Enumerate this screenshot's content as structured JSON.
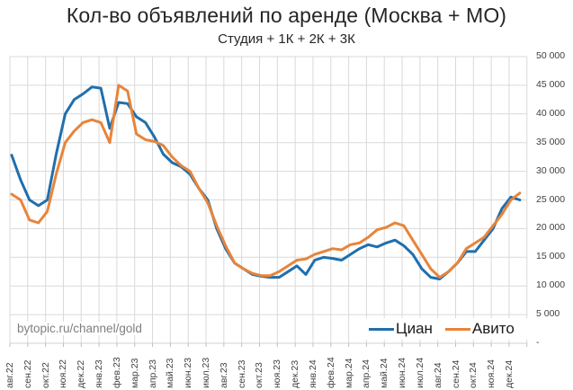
{
  "header": {
    "title": "Кол-во объявлений по аренде (Москва + МО)",
    "subtitle": "Студия + 1К + 2К + 3К"
  },
  "watermark": "bytopic.ru/channel/gold",
  "legend": [
    {
      "name": "Циан",
      "color": "#1f6fad"
    },
    {
      "name": "Авито",
      "color": "#e8843a"
    }
  ],
  "y_ticks": [
    "50 000",
    "45 000",
    "40 000",
    "35 000",
    "30 000",
    "25 000",
    "20 000",
    "15 000",
    "10 000",
    "5 000",
    "-"
  ],
  "x_ticks": [
    "авг.22",
    "сен.22",
    "окт.22",
    "ноя.22",
    "дек.22",
    "янв.23",
    "фев.23",
    "мар.23",
    "апр.23",
    "май.23",
    "июн.23",
    "июл.23",
    "авг.23",
    "сен.23",
    "окт.23",
    "ноя.23",
    "дек.23",
    "янв.24",
    "фев.24",
    "мар.24",
    "апр.24",
    "май.24",
    "июн.24",
    "июл.24",
    "авг.24",
    "сен.24",
    "окт.24",
    "ноя.24",
    "дек.24"
  ],
  "chart_data": {
    "type": "line",
    "title": "Кол-во объявлений по аренде (Москва + МО)",
    "subtitle": "Студия + 1К + 2К + 3К",
    "xlabel": "",
    "ylabel": "",
    "ylim": [
      0,
      50000
    ],
    "y_axis_position": "right",
    "grid": true,
    "legend_position": "bottom-right inside",
    "x_resolution": "semi-monthly (approx.)",
    "x": [
      "авг.22",
      "авг.22b",
      "сен.22",
      "сен.22b",
      "окт.22",
      "окт.22b",
      "ноя.22",
      "ноя.22b",
      "дек.22",
      "дек.22b",
      "янв.23",
      "янв.23b",
      "фев.23",
      "фев.23b",
      "мар.23",
      "мар.23b",
      "апр.23",
      "апр.23b",
      "май.23",
      "май.23b",
      "июн.23",
      "июн.23b",
      "июл.23",
      "июл.23b",
      "авг.23",
      "авг.23b",
      "сен.23",
      "сен.23b",
      "окт.23",
      "окт.23b",
      "ноя.23",
      "ноя.23b",
      "дек.23",
      "дек.23b",
      "янв.24",
      "янв.24b",
      "фев.24",
      "фев.24b",
      "мар.24",
      "мар.24b",
      "апр.24",
      "апр.24b",
      "май.24",
      "май.24b",
      "июн.24",
      "июн.24b",
      "июл.24",
      "июл.24b",
      "авг.24",
      "авг.24b",
      "сен.24",
      "сен.24b",
      "окт.24",
      "окт.24b",
      "ноя.24",
      "ноя.24b",
      "дек.24",
      "дек.24b"
    ],
    "series": [
      {
        "name": "Циан",
        "color": "#1f6fad",
        "values": [
          32800,
          28500,
          25000,
          24000,
          25000,
          33000,
          40000,
          42500,
          43500,
          44700,
          44500,
          37500,
          42000,
          41800,
          39500,
          38500,
          36000,
          33000,
          31500,
          30800,
          29500,
          27000,
          25000,
          20000,
          16500,
          14000,
          13000,
          12000,
          11700,
          11500,
          11500,
          12500,
          13500,
          12000,
          14500,
          15000,
          14800,
          14500,
          15500,
          16500,
          17200,
          16800,
          17500,
          18000,
          17000,
          15500,
          13000,
          11500,
          11200,
          12500,
          14000,
          16000,
          16000,
          18000,
          20000,
          23500,
          25500,
          25000
        ]
      },
      {
        "name": "Авито",
        "color": "#e8843a",
        "values": [
          26000,
          25000,
          21500,
          21000,
          23000,
          29500,
          35000,
          37000,
          38500,
          39000,
          38500,
          35000,
          45000,
          44000,
          36500,
          35500,
          35200,
          34500,
          32500,
          31000,
          30000,
          27000,
          24500,
          20500,
          17000,
          14000,
          13000,
          12200,
          11800,
          11800,
          12500,
          13500,
          14500,
          14700,
          15500,
          16000,
          16500,
          16300,
          17200,
          17500,
          18500,
          19800,
          20200,
          21000,
          20500,
          18000,
          15500,
          13000,
          11500,
          12500,
          14000,
          16500,
          17500,
          18500,
          20500,
          22500,
          25000,
          26200
        ]
      }
    ]
  }
}
